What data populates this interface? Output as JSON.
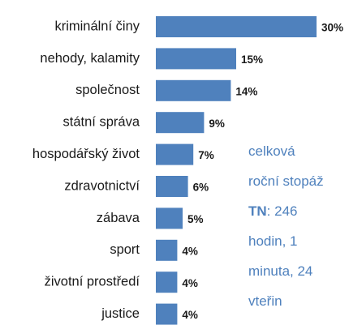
{
  "chart_data": {
    "type": "bar",
    "orientation": "horizontal",
    "categories": [
      "kriminální činy",
      "nehody, kalamity",
      "společnost",
      "státní správa",
      "hospodářský život",
      "zdravotnictví",
      "zábava",
      "sport",
      "životní prostředí",
      "justice"
    ],
    "values": [
      30,
      15,
      14,
      9,
      7,
      6,
      5,
      4,
      4,
      4
    ],
    "value_labels": [
      "30%",
      "15%",
      "14%",
      "9%",
      "7%",
      "6%",
      "5%",
      "4%",
      "4%",
      "4%"
    ],
    "color": "#4f81bd",
    "annotation": {
      "color": "#4f81bd",
      "lines": [
        {
          "text": "celková"
        },
        {
          "text": "roční stopáž"
        },
        {
          "bold": "TN",
          "text": ": 246"
        },
        {
          "text": "hodin, 1"
        },
        {
          "text": "minuta, 24"
        },
        {
          "text": "vteřin"
        }
      ]
    }
  }
}
